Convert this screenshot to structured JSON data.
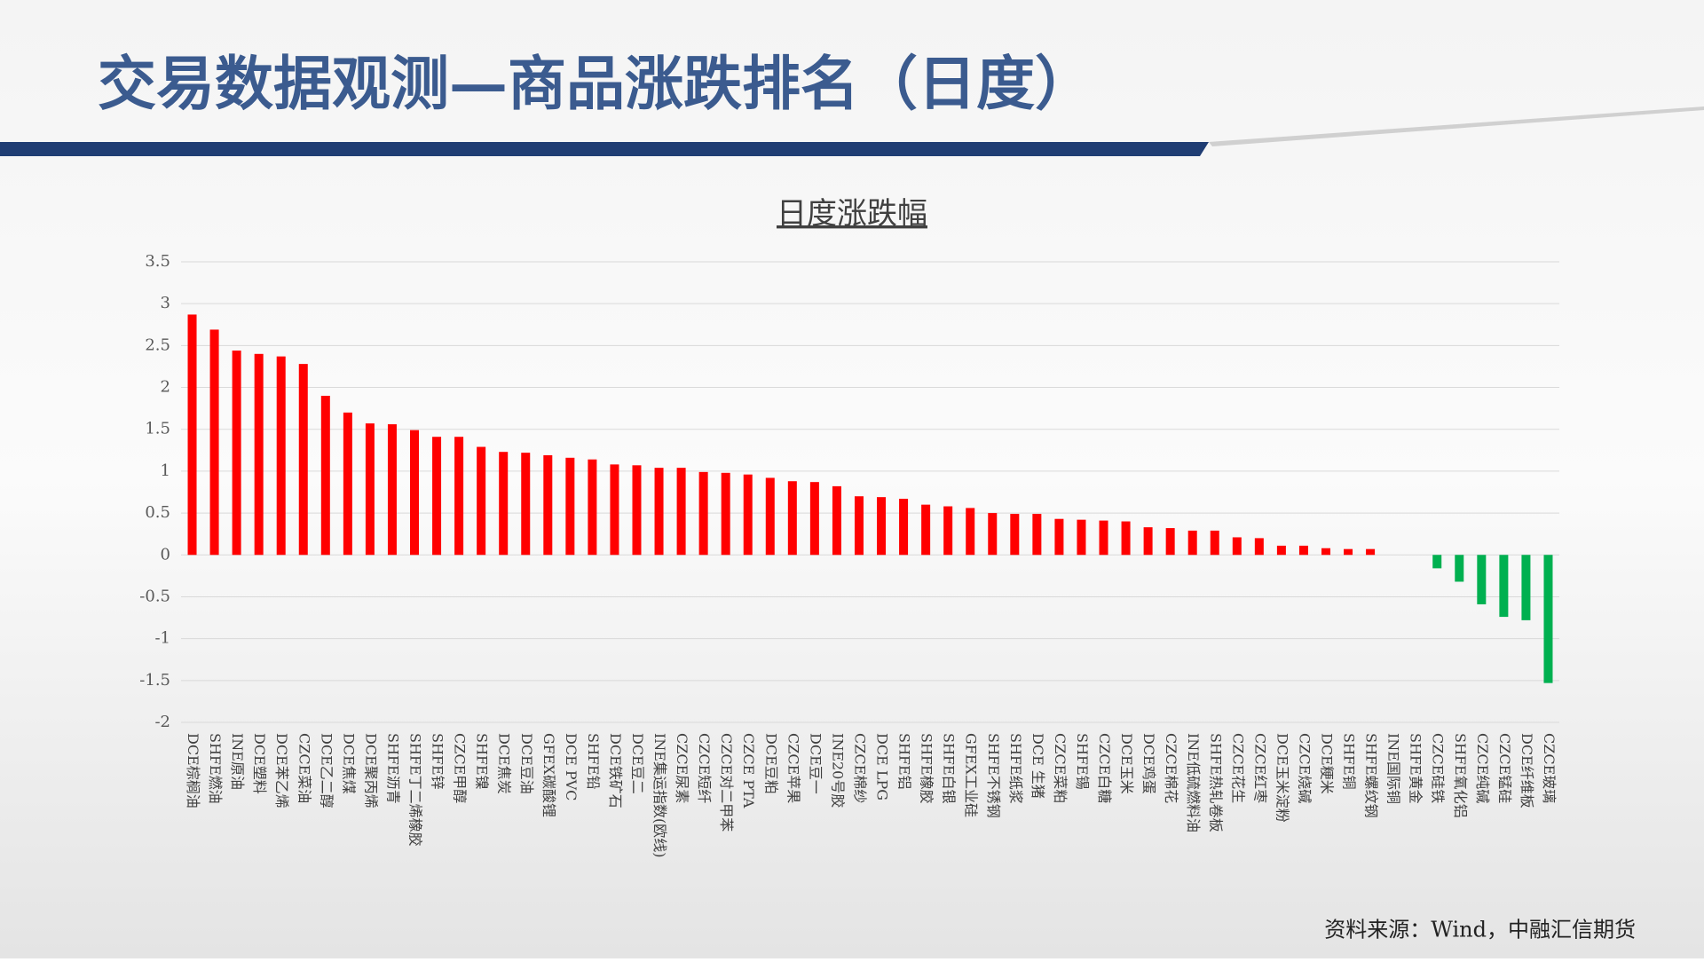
{
  "slide": {
    "title": "交易数据观测—商品涨跌排名（日度）",
    "source": "资料来源：Wind，中融汇信期货"
  },
  "chart_data": {
    "type": "bar",
    "title": "日度涨跌幅",
    "categories": [
      "DCE棕榈油",
      "SHFE燃油",
      "INE原油",
      "DCE塑料",
      "DCE苯乙烯",
      "CZCE菜油",
      "DCE乙二醇",
      "DCE焦煤",
      "DCE聚丙烯",
      "SHFE沥青",
      "SHFE丁二烯橡胶",
      "SHFE锌",
      "CZCE甲醇",
      "SHFE镍",
      "DCE焦炭",
      "DCE豆油",
      "GFEX碳酸锂",
      "DCE PVC",
      "SHFE铅",
      "DCE铁矿石",
      "DCE豆二",
      "INE集运指数(欧线)",
      "CZCE尿素",
      "CZCE短纤",
      "CZCE对二甲苯",
      "CZCE PTA",
      "DCE豆粕",
      "CZCE苹果",
      "DCE豆一",
      "INE20号胶",
      "CZCE棉纱",
      "DCE LPG",
      "SHFE铝",
      "SHFE橡胶",
      "SHFE白银",
      "GFEX工业硅",
      "SHFE不锈钢",
      "SHFE纸浆",
      "DCE 生猪",
      "CZCE菜粕",
      "SHFE锡",
      "CZCE白糖",
      "DCE玉米",
      "DCE鸡蛋",
      "CZCE棉花",
      "INE低硫燃料油",
      "SHFE热轧卷板",
      "CZCE花生",
      "CZCE红枣",
      "DCE玉米淀粉",
      "CZCE烧碱",
      "DCE粳米",
      "SHFE铜",
      "SHFE螺纹钢",
      "INE国际铜",
      "SHFE黄金",
      "CZCE硅铁",
      "SHFE氧化铝",
      "CZCE纯碱",
      "CZCE锰硅",
      "DCE纤维板",
      "CZCE玻璃"
    ],
    "values": [
      2.87,
      2.69,
      2.44,
      2.4,
      2.37,
      2.28,
      1.9,
      1.7,
      1.57,
      1.56,
      1.49,
      1.41,
      1.41,
      1.29,
      1.23,
      1.22,
      1.19,
      1.16,
      1.14,
      1.08,
      1.07,
      1.04,
      1.04,
      0.99,
      0.98,
      0.96,
      0.92,
      0.88,
      0.87,
      0.82,
      0.7,
      0.69,
      0.67,
      0.6,
      0.58,
      0.56,
      0.5,
      0.49,
      0.49,
      0.43,
      0.42,
      0.41,
      0.4,
      0.33,
      0.32,
      0.29,
      0.29,
      0.21,
      0.2,
      0.11,
      0.11,
      0.08,
      0.07,
      0.07,
      0,
      0,
      -0.16,
      -0.32,
      -0.59,
      -0.74,
      -0.78,
      -1.53
    ],
    "positive_color": "#ff0000",
    "negative_color": "#00b050",
    "ylim": [
      -2,
      3.5
    ],
    "yticks": [
      -2,
      -1.5,
      -1,
      -0.5,
      0,
      0.5,
      1,
      1.5,
      2,
      2.5,
      3,
      3.5
    ],
    "grid": true
  }
}
